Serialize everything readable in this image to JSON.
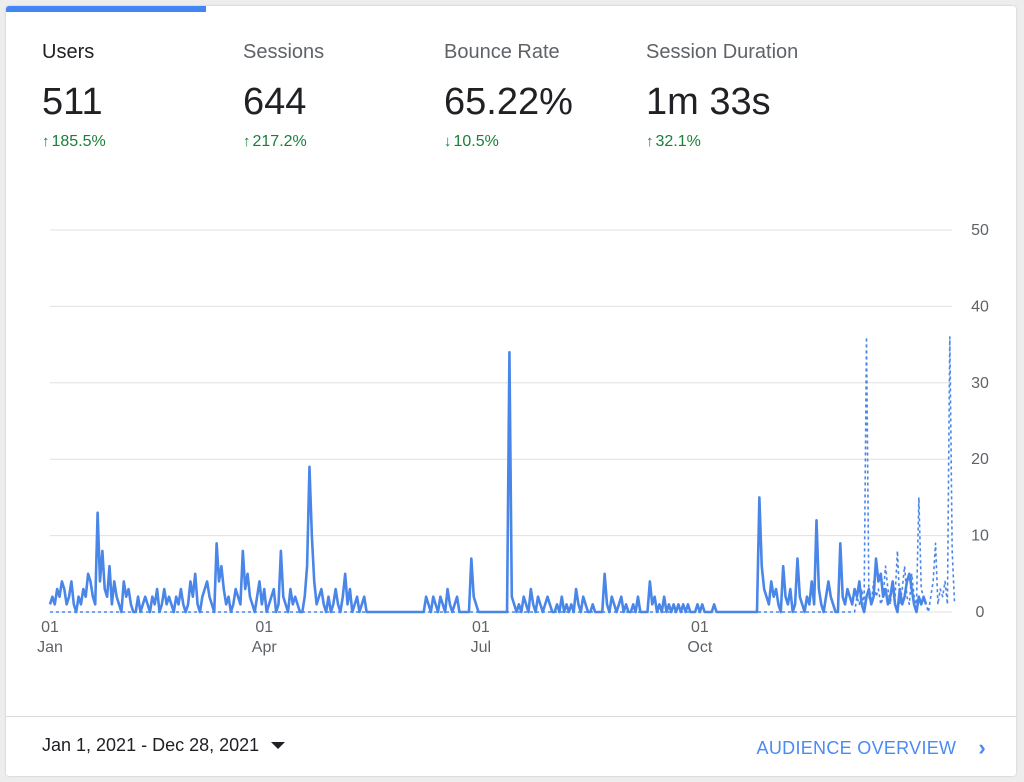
{
  "metrics": [
    {
      "label": "Users",
      "value": "511",
      "delta": "185.5%",
      "direction": "up",
      "active": true
    },
    {
      "label": "Sessions",
      "value": "644",
      "delta": "217.2%",
      "direction": "up",
      "active": false
    },
    {
      "label": "Bounce Rate",
      "value": "65.22%",
      "delta": "10.5%",
      "direction": "down",
      "active": false
    },
    {
      "label": "Session Duration",
      "value": "1m 33s",
      "delta": "32.1%",
      "direction": "up",
      "active": false
    }
  ],
  "colors": {
    "accent": "#4285f4",
    "line": "#4a86e8",
    "delta_green": "#188038",
    "link": "#4a8af4"
  },
  "chart_data": {
    "type": "line",
    "ylim": [
      0,
      50
    ],
    "yticks": [
      "0",
      "10",
      "20",
      "30",
      "40",
      "50"
    ],
    "xticks": [
      {
        "day": 0,
        "top": "01",
        "bottom": "Jan"
      },
      {
        "day": 90,
        "top": "01",
        "bottom": "Apr"
      },
      {
        "day": 181,
        "top": "01",
        "bottom": "Jul"
      },
      {
        "day": 273,
        "top": "01",
        "bottom": "Oct"
      }
    ],
    "grid": true,
    "series": [
      {
        "values": [
          1,
          2,
          1,
          3,
          2,
          4,
          3,
          1,
          2,
          4,
          1,
          0,
          2,
          1,
          3,
          2,
          5,
          4,
          2,
          1,
          13,
          4,
          8,
          3,
          2,
          6,
          1,
          4,
          2,
          1,
          0,
          4,
          2,
          3,
          1,
          0,
          0,
          2,
          0,
          1,
          2,
          1,
          0,
          2,
          1,
          3,
          0,
          1,
          3,
          1,
          2,
          1,
          0,
          2,
          1,
          3,
          1,
          0,
          1,
          4,
          2,
          5,
          1,
          0,
          2,
          3,
          4,
          2,
          1,
          0,
          9,
          4,
          6,
          3,
          1,
          2,
          0,
          1,
          3,
          2,
          1,
          8,
          3,
          5,
          2,
          1,
          0,
          2,
          4,
          1,
          3,
          0,
          1,
          2,
          3,
          0,
          1,
          8,
          2,
          1,
          0,
          3,
          1,
          2,
          1,
          0,
          0,
          2,
          6,
          19,
          10,
          4,
          1,
          2,
          3,
          1,
          0,
          2,
          0,
          1,
          3,
          1,
          0,
          2,
          5,
          1,
          3,
          0,
          1,
          2,
          0,
          1,
          2,
          0,
          0,
          0,
          0,
          0,
          0,
          0,
          0,
          0,
          0,
          0,
          0,
          0,
          0,
          0,
          0,
          0,
          0,
          0,
          0,
          0,
          0,
          0,
          0,
          0,
          2,
          1,
          0,
          2,
          1,
          0,
          2,
          1,
          0,
          3,
          1,
          0,
          1,
          2,
          0,
          0,
          0,
          0,
          0,
          7,
          2,
          1,
          0,
          0,
          0,
          0,
          0,
          0,
          0,
          0,
          0,
          0,
          0,
          0,
          0,
          34,
          2,
          1,
          0,
          1,
          0,
          2,
          1,
          0,
          3,
          1,
          0,
          2,
          1,
          0,
          1,
          2,
          1,
          0,
          0,
          1,
          0,
          2,
          0,
          1,
          0,
          1,
          0,
          3,
          1,
          0,
          2,
          1,
          0,
          0,
          1,
          0,
          0,
          0,
          0,
          5,
          1,
          0,
          2,
          1,
          0,
          1,
          2,
          0,
          1,
          0,
          0,
          1,
          0,
          2,
          0,
          0,
          0,
          0,
          4,
          1,
          2,
          0,
          1,
          0,
          2,
          0,
          1,
          0,
          1,
          0,
          1,
          0,
          1,
          0,
          1,
          0,
          0,
          0,
          1,
          0,
          1,
          0,
          0,
          0,
          0,
          1,
          0,
          0,
          0,
          0,
          0,
          0,
          0,
          0,
          0,
          0,
          0,
          0,
          0,
          0,
          0,
          0,
          0,
          0,
          15,
          6,
          3,
          2,
          1,
          4,
          2,
          3,
          1,
          0,
          6,
          2,
          1,
          3,
          0,
          1,
          7,
          2,
          1,
          0,
          2,
          1,
          4,
          1,
          12,
          3,
          1,
          0,
          2,
          4,
          2,
          1,
          0,
          0,
          9,
          2,
          1,
          3,
          2,
          1,
          3,
          2,
          4,
          1,
          0,
          2,
          3,
          1,
          2,
          7,
          4,
          5,
          2,
          3,
          1,
          2,
          4,
          1,
          0,
          3,
          1,
          2,
          4,
          5,
          3,
          1,
          0,
          2,
          1,
          2,
          1
        ]
      },
      {
        "dashed": true,
        "values": [
          0,
          0,
          0,
          0,
          0,
          0,
          0,
          0,
          0,
          0,
          0,
          0,
          0,
          0,
          0,
          0,
          0,
          0,
          0,
          0,
          0,
          0,
          0,
          0,
          0,
          0,
          0,
          0,
          0,
          0,
          0,
          0,
          0,
          0,
          0,
          0,
          0,
          0,
          0,
          0,
          0,
          0,
          0,
          0,
          0,
          0,
          0,
          0,
          0,
          0,
          0,
          0,
          0,
          0,
          0,
          0,
          0,
          0,
          0,
          0,
          0,
          0,
          0,
          0,
          0,
          0,
          0,
          0,
          0,
          0,
          0,
          0,
          0,
          0,
          0,
          0,
          0,
          0,
          0,
          0,
          0,
          0,
          0,
          0,
          0,
          0,
          0,
          0,
          0,
          0,
          0,
          0,
          0,
          0,
          0,
          0,
          0,
          0,
          0,
          0,
          0,
          0,
          0,
          0,
          0,
          0,
          0,
          0,
          0,
          0,
          0,
          0,
          0,
          0,
          0,
          0,
          0,
          0,
          0,
          0,
          0,
          0,
          0,
          0,
          0,
          0,
          0,
          0,
          0,
          0,
          0,
          0,
          0,
          0,
          0,
          0,
          0,
          0,
          0,
          0,
          0,
          0,
          0,
          0,
          0,
          0,
          0,
          0,
          0,
          0,
          0,
          0,
          0,
          0,
          0,
          0,
          0,
          0,
          0,
          0,
          0,
          0,
          0,
          0,
          0,
          0,
          0,
          0,
          0,
          0,
          0,
          0,
          0,
          0,
          0,
          0,
          0,
          0,
          0,
          0,
          0,
          0,
          0,
          0,
          0,
          0,
          0,
          0,
          0,
          0,
          0,
          0,
          0,
          0,
          0,
          0,
          0,
          0,
          0,
          0,
          0,
          0,
          0,
          0,
          0,
          0,
          0,
          0,
          0,
          0,
          0,
          0,
          0,
          0,
          0,
          0,
          0,
          0,
          0,
          0,
          0,
          0,
          0,
          0,
          0,
          0,
          0,
          0,
          0,
          0,
          0,
          0,
          0,
          0,
          0,
          0,
          0,
          0,
          0,
          0,
          0,
          0,
          0,
          0,
          0,
          0,
          0,
          0,
          0,
          0,
          0,
          0,
          0,
          0,
          0,
          0,
          0,
          0,
          0,
          0,
          0,
          0,
          0,
          0,
          0,
          0,
          0,
          0,
          0,
          0,
          0,
          0,
          0,
          0,
          0,
          0,
          0,
          0,
          0,
          0,
          0,
          0,
          0,
          0,
          0,
          0,
          0,
          0,
          0,
          0,
          0,
          0,
          0,
          0,
          0,
          0,
          0,
          0,
          0,
          0,
          0,
          0,
          0,
          0,
          0,
          0,
          0,
          0,
          0,
          0,
          0,
          0,
          0,
          0,
          0,
          0,
          0,
          0,
          0,
          0,
          0,
          0,
          0,
          0,
          0,
          0,
          0,
          0,
          0,
          0,
          0,
          0,
          0,
          0,
          0,
          0,
          0,
          0,
          0,
          2,
          1,
          3,
          1,
          36,
          2,
          1,
          4,
          2,
          3,
          1,
          2,
          6,
          3,
          1,
          4,
          2,
          8,
          1,
          3,
          6,
          2,
          1,
          5,
          2,
          1,
          15,
          3,
          2,
          1,
          0,
          2,
          4,
          9,
          1,
          3,
          2,
          4,
          1,
          36,
          8,
          1
        ]
      }
    ]
  },
  "footer": {
    "date_range": "Jan 1, 2021 - Dec 28, 2021",
    "link_label": "AUDIENCE OVERVIEW"
  }
}
